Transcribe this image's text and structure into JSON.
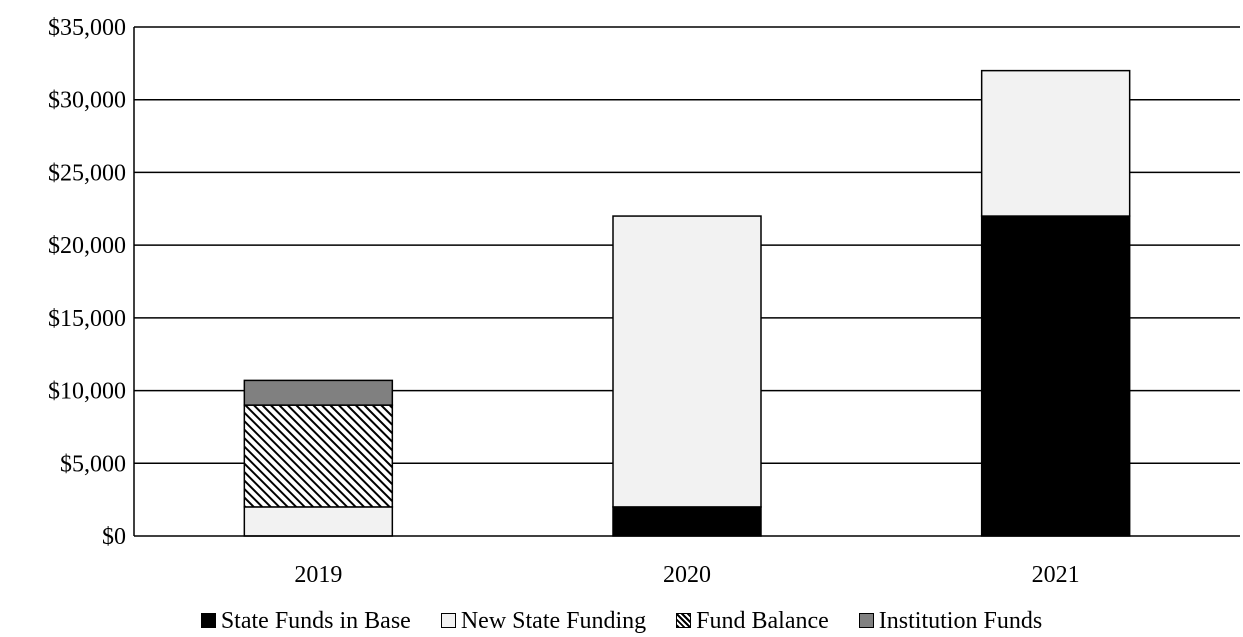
{
  "chart_data": {
    "type": "bar",
    "stacked": true,
    "categories": [
      "2019",
      "2020",
      "2021"
    ],
    "series": [
      {
        "name": "State Funds in Base",
        "values": [
          0,
          2000,
          22000
        ],
        "color": "#000000",
        "fill": "solid"
      },
      {
        "name": "New State Funding",
        "values": [
          2000,
          20000,
          10000
        ],
        "color": "#f2f2f2",
        "fill": "solid"
      },
      {
        "name": "Fund Balance",
        "values": [
          7000,
          0,
          0
        ],
        "color": "#000000",
        "fill": "diagonal-hatch"
      },
      {
        "name": "Institution Funds",
        "values": [
          1700,
          0,
          0
        ],
        "color": "#808080",
        "fill": "solid"
      }
    ],
    "ylim": [
      0,
      35000
    ],
    "yticks": [
      0,
      5000,
      10000,
      15000,
      20000,
      25000,
      30000,
      35000
    ],
    "ytick_labels": [
      "$0",
      "$5,000",
      "$10,000",
      "$15,000",
      "$20,000",
      "$25,000",
      "$30,000",
      "$35,000"
    ],
    "grid": true,
    "legend_position": "bottom",
    "title": "",
    "xlabel": "",
    "ylabel": ""
  }
}
